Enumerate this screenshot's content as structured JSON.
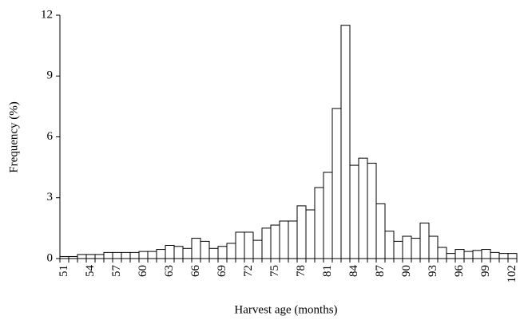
{
  "chart_data": {
    "type": "bar",
    "y_label": "Frequency (%)",
    "x_label": "Harvest age (months)",
    "categories": [
      "51",
      null,
      null,
      "54",
      null,
      null,
      "57",
      null,
      null,
      "60",
      null,
      null,
      "63",
      null,
      null,
      "66",
      null,
      null,
      "69",
      null,
      null,
      "72",
      null,
      null,
      "75",
      null,
      null,
      "78",
      null,
      null,
      "81",
      null,
      null,
      "84",
      null,
      null,
      "87",
      null,
      null,
      "90",
      null,
      null,
      "93",
      null,
      null,
      "96",
      null,
      null,
      "99",
      null,
      null,
      "102"
    ],
    "values": [
      0.1,
      0.1,
      0.2,
      0.2,
      0.2,
      0.3,
      0.3,
      0.3,
      0.3,
      0.35,
      0.35,
      0.45,
      0.65,
      0.6,
      0.5,
      1.0,
      0.85,
      0.5,
      0.6,
      0.75,
      1.3,
      1.3,
      0.9,
      1.5,
      1.65,
      1.85,
      1.85,
      2.6,
      2.4,
      3.5,
      4.25,
      7.4,
      11.5,
      4.6,
      4.95,
      4.7,
      2.7,
      1.35,
      0.85,
      1.1,
      1.0,
      1.75,
      1.1,
      0.55,
      0.25,
      0.45,
      0.35,
      0.4,
      0.45,
      0.3,
      0.25,
      0.25
    ],
    "color": "#ffffff",
    "ylim": [
      0,
      12
    ],
    "yticks": [
      0,
      3,
      6,
      9,
      12
    ]
  }
}
